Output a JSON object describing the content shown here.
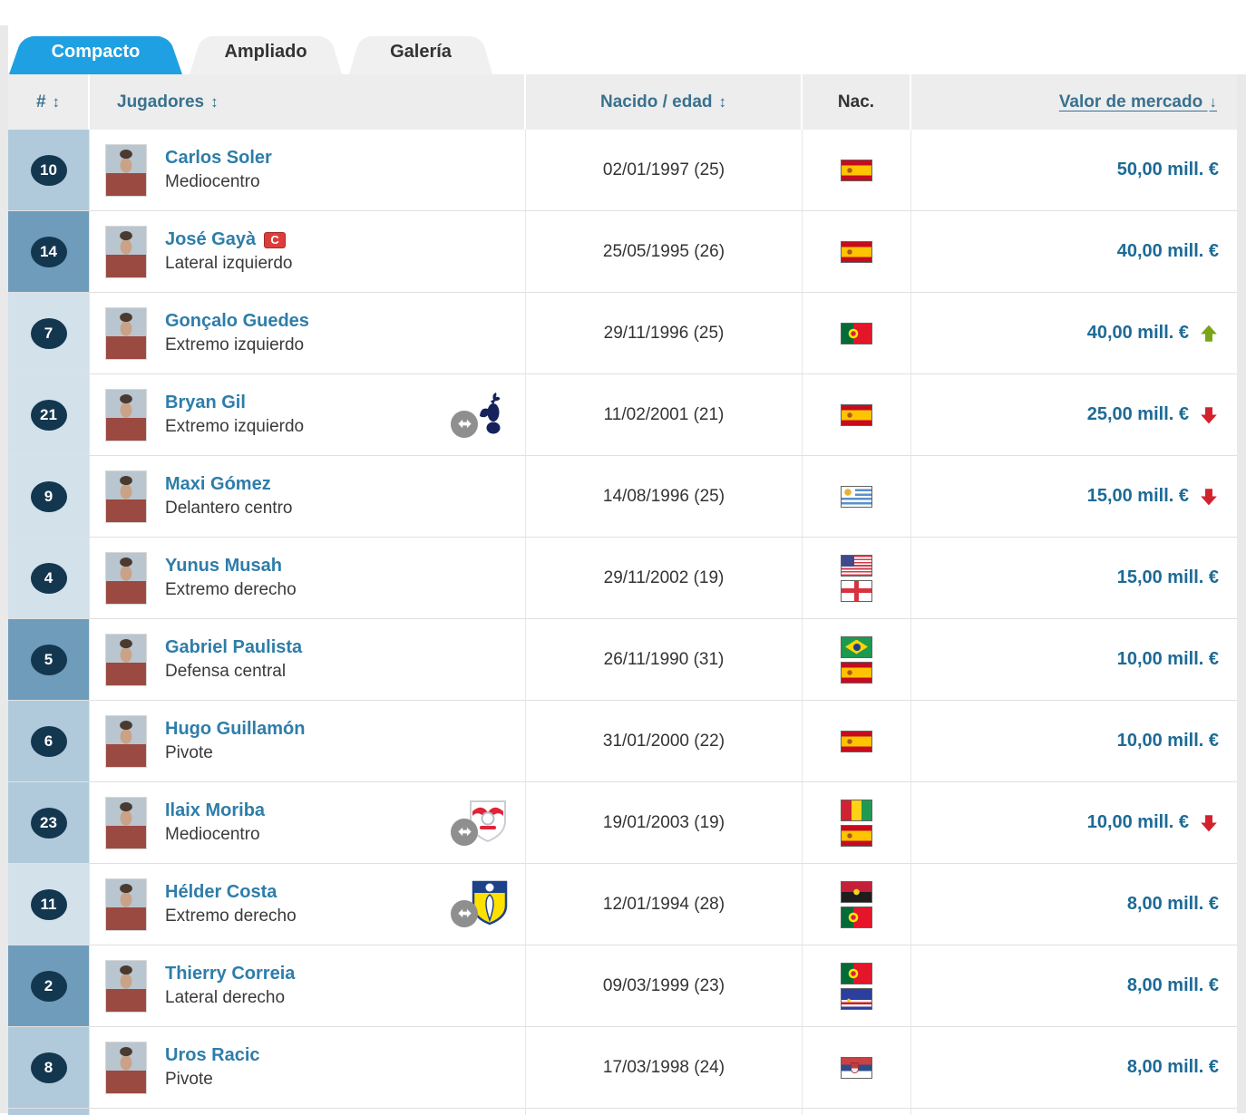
{
  "tabs": [
    {
      "label": "Compacto",
      "active": true
    },
    {
      "label": "Ampliado",
      "active": false
    },
    {
      "label": "Galería",
      "active": false
    }
  ],
  "table": {
    "headers": {
      "number": "#",
      "players": "Jugadores",
      "born_age": "Nacido / edad",
      "nationality": "Nac.",
      "market_value": "Valor de mercado"
    },
    "sort_icon_both": "↕",
    "sort_icon_desc": "↓",
    "rows": [
      {
        "num": "10",
        "name": "Carlos Soler",
        "position": "Mediocentro",
        "position_group": "midfielder",
        "captain": false,
        "loan_club": null,
        "born": "02/01/1997 (25)",
        "nationalities": [
          {
            "code": "esp",
            "name": "España"
          }
        ],
        "value": "50,00 mill. €",
        "trend": null
      },
      {
        "num": "14",
        "name": "José Gayà",
        "position": "Lateral izquierdo",
        "position_group": "defender",
        "captain": true,
        "loan_club": null,
        "born": "25/05/1995 (26)",
        "nationalities": [
          {
            "code": "esp",
            "name": "España"
          }
        ],
        "value": "40,00 mill. €",
        "trend": null
      },
      {
        "num": "7",
        "name": "Gonçalo Guedes",
        "position": "Extremo izquierdo",
        "position_group": "forward",
        "captain": false,
        "loan_club": null,
        "born": "29/11/1996 (25)",
        "nationalities": [
          {
            "code": "por",
            "name": "Portugal"
          }
        ],
        "value": "40,00 mill. €",
        "trend": "up"
      },
      {
        "num": "21",
        "name": "Bryan Gil",
        "position": "Extremo izquierdo",
        "position_group": "forward",
        "captain": false,
        "loan_club": "tottenham",
        "born": "11/02/2001 (21)",
        "nationalities": [
          {
            "code": "esp",
            "name": "España"
          }
        ],
        "value": "25,00 mill. €",
        "trend": "down"
      },
      {
        "num": "9",
        "name": "Maxi Gómez",
        "position": "Delantero centro",
        "position_group": "forward",
        "captain": false,
        "loan_club": null,
        "born": "14/08/1996 (25)",
        "nationalities": [
          {
            "code": "uru",
            "name": "Uruguay"
          }
        ],
        "value": "15,00 mill. €",
        "trend": "down"
      },
      {
        "num": "4",
        "name": "Yunus Musah",
        "position": "Extremo derecho",
        "position_group": "forward",
        "captain": false,
        "loan_club": null,
        "born": "29/11/2002 (19)",
        "nationalities": [
          {
            "code": "usa",
            "name": "Estados Unidos"
          },
          {
            "code": "eng",
            "name": "Inglaterra"
          }
        ],
        "value": "15,00 mill. €",
        "trend": null
      },
      {
        "num": "5",
        "name": "Gabriel Paulista",
        "position": "Defensa central",
        "position_group": "defender",
        "captain": false,
        "loan_club": null,
        "born": "26/11/1990 (31)",
        "nationalities": [
          {
            "code": "bra",
            "name": "Brasil"
          },
          {
            "code": "esp",
            "name": "España"
          }
        ],
        "value": "10,00 mill. €",
        "trend": null
      },
      {
        "num": "6",
        "name": "Hugo Guillamón",
        "position": "Pivote",
        "position_group": "midfielder",
        "captain": false,
        "loan_club": null,
        "born": "31/01/2000 (22)",
        "nationalities": [
          {
            "code": "esp",
            "name": "España"
          }
        ],
        "value": "10,00 mill. €",
        "trend": null
      },
      {
        "num": "23",
        "name": "Ilaix Moriba",
        "position": "Mediocentro",
        "position_group": "midfielder",
        "captain": false,
        "loan_club": "leipzig",
        "born": "19/01/2003 (19)",
        "nationalities": [
          {
            "code": "gui",
            "name": "Guinea"
          },
          {
            "code": "esp",
            "name": "España"
          }
        ],
        "value": "10,00 mill. €",
        "trend": "down"
      },
      {
        "num": "11",
        "name": "Hélder Costa",
        "position": "Extremo derecho",
        "position_group": "forward",
        "captain": false,
        "loan_club": "leeds",
        "born": "12/01/1994 (28)",
        "nationalities": [
          {
            "code": "ang",
            "name": "Angola"
          },
          {
            "code": "por",
            "name": "Portugal"
          }
        ],
        "value": "8,00 mill. €",
        "trend": null
      },
      {
        "num": "2",
        "name": "Thierry Correia",
        "position": "Lateral derecho",
        "position_group": "defender",
        "captain": false,
        "loan_club": null,
        "born": "09/03/1999 (23)",
        "nationalities": [
          {
            "code": "por",
            "name": "Portugal"
          },
          {
            "code": "cpv",
            "name": "Cabo Verde"
          }
        ],
        "value": "8,00 mill. €",
        "trend": null
      },
      {
        "num": "8",
        "name": "Uros Racic",
        "position": "Pivote",
        "position_group": "midfielder",
        "captain": false,
        "loan_club": null,
        "born": "17/03/1998 (24)",
        "nationalities": [
          {
            "code": "srb",
            "name": "Serbia"
          }
        ],
        "value": "8,00 mill. €",
        "trend": null
      }
    ],
    "captain_icon_letter": "C"
  },
  "colors": {
    "active_tab_blue": "#1fa0e2",
    "header_link_blue": "#39718f",
    "player_link_blue": "#2e7da9",
    "value_blue": "#1d6a96",
    "trend_up_green": "#7ba416",
    "trend_down_red": "#d2222d",
    "group_midfielder": "#b1cadb",
    "group_defender": "#6f9cba",
    "group_forward": "#d3e1eb",
    "badge_navy": "#143750"
  }
}
